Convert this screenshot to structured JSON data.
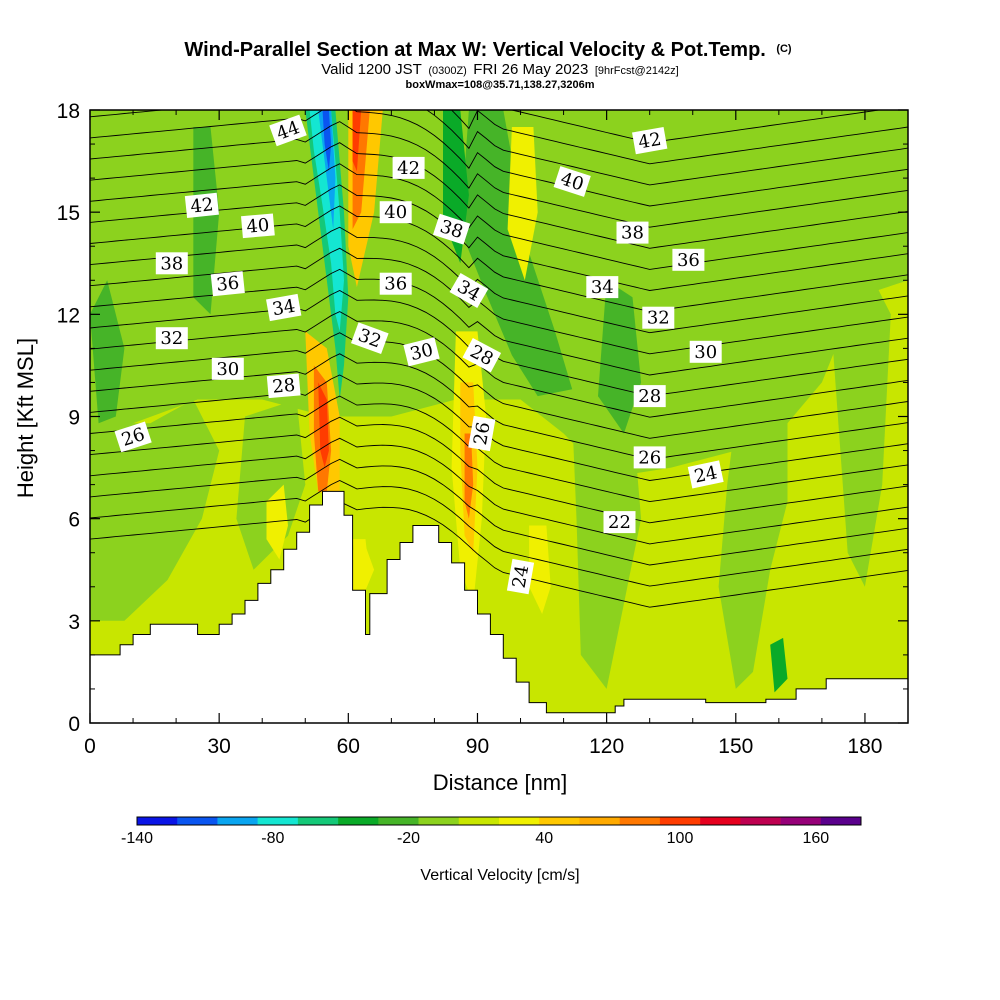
{
  "header": {
    "title": "Wind-Parallel Section at Max W: Vertical Velocity & Pot.Temp.",
    "title_tag": "(C)",
    "subtitle_a": "Valid 1200 JST",
    "subtitle_b": "(0300Z)",
    "subtitle_c": "FRI 26 May 2023",
    "subtitle_d": "[9hrFcst@2142z]",
    "subtitle2": "boxWmax=108@35.71,138.27,3206m"
  },
  "chart_data": {
    "type": "heatmap",
    "xlabel": "Distance [nm]",
    "ylabel": "Height [Kft MSL]",
    "xlim": [
      0,
      190
    ],
    "ylim": [
      0,
      18
    ],
    "x_ticks": [
      "0",
      "30",
      "60",
      "90",
      "120",
      "150",
      "180"
    ],
    "y_ticks": [
      "0",
      "3",
      "6",
      "9",
      "12",
      "15",
      "18"
    ],
    "colorbar": {
      "label": "Vertical Velocity [cm/s]",
      "range": [
        -140,
        180
      ],
      "tick_labels": [
        "-140",
        "-80",
        "-20",
        "40",
        "100",
        "160"
      ],
      "tick_values": [
        -140,
        -80,
        -20,
        40,
        100,
        160
      ],
      "colors": [
        "#0a14e6",
        "#0a55f0",
        "#0aa5f0",
        "#14e6d2",
        "#14c878",
        "#0aaa28",
        "#46b428",
        "#8cd21e",
        "#c8e600",
        "#f0f000",
        "#ffc800",
        "#ffaa00",
        "#ff7800",
        "#ff3c00",
        "#e6001e",
        "#be0050",
        "#960078",
        "#5a008c"
      ]
    },
    "terrain": [
      [
        0,
        2
      ],
      [
        7,
        2
      ],
      [
        7,
        2.3
      ],
      [
        10,
        2.3
      ],
      [
        10,
        2.6
      ],
      [
        14,
        2.6
      ],
      [
        14,
        2.9
      ],
      [
        25,
        2.9
      ],
      [
        25,
        2.6
      ],
      [
        30,
        2.6
      ],
      [
        30,
        2.9
      ],
      [
        33,
        2.9
      ],
      [
        33,
        3.2
      ],
      [
        36,
        3.2
      ],
      [
        36,
        3.6
      ],
      [
        39,
        3.6
      ],
      [
        39,
        4.1
      ],
      [
        42,
        4.1
      ],
      [
        42,
        4.5
      ],
      [
        45,
        4.5
      ],
      [
        45,
        5.1
      ],
      [
        48,
        5.1
      ],
      [
        48,
        5.6
      ],
      [
        51,
        5.6
      ],
      [
        51,
        6.4
      ],
      [
        54,
        6.4
      ],
      [
        54,
        6.8
      ],
      [
        59,
        6.8
      ],
      [
        59,
        6.1
      ],
      [
        61,
        6.1
      ],
      [
        61,
        3.9
      ],
      [
        64,
        3.9
      ],
      [
        64,
        2.6
      ],
      [
        65,
        2.6
      ],
      [
        65,
        3.8
      ],
      [
        69,
        3.8
      ],
      [
        69,
        4.8
      ],
      [
        72,
        4.8
      ],
      [
        72,
        5.3
      ],
      [
        75,
        5.3
      ],
      [
        75,
        5.8
      ],
      [
        81,
        5.8
      ],
      [
        81,
        5.3
      ],
      [
        84,
        5.3
      ],
      [
        84,
        4.7
      ],
      [
        87,
        4.7
      ],
      [
        87,
        3.9
      ],
      [
        90,
        3.9
      ],
      [
        90,
        3.2
      ],
      [
        93,
        3.2
      ],
      [
        93,
        2.6
      ],
      [
        96,
        2.6
      ],
      [
        96,
        1.9
      ],
      [
        99,
        1.9
      ],
      [
        99,
        1.2
      ],
      [
        102,
        1.2
      ],
      [
        102,
        0.6
      ],
      [
        106,
        0.6
      ],
      [
        106,
        0.3
      ],
      [
        122,
        0.3
      ],
      [
        122,
        0.5
      ],
      [
        124,
        0.5
      ],
      [
        124,
        0.7
      ],
      [
        143,
        0.7
      ],
      [
        143,
        0.6
      ],
      [
        157,
        0.6
      ],
      [
        157,
        0.7
      ],
      [
        164,
        0.7
      ],
      [
        164,
        1.0
      ],
      [
        171,
        1.0
      ],
      [
        171,
        1.3
      ],
      [
        190,
        1.3
      ]
    ],
    "contour_levels": [
      22,
      23,
      24,
      25,
      26,
      27,
      28,
      29,
      30,
      31,
      32,
      33,
      34,
      35,
      36,
      37,
      38,
      39,
      40,
      41,
      42,
      43,
      44
    ],
    "contour_labels": [
      {
        "text": "26",
        "x": 10,
        "y": 8.4,
        "angle": -18
      },
      {
        "text": "28",
        "x": 45,
        "y": 9.9,
        "angle": -5
      },
      {
        "text": "30",
        "x": 32,
        "y": 10.4,
        "angle": 0
      },
      {
        "text": "32",
        "x": 19,
        "y": 11.3,
        "angle": 0
      },
      {
        "text": "34",
        "x": 45,
        "y": 12.2,
        "angle": -10
      },
      {
        "text": "36",
        "x": 32,
        "y": 12.9,
        "angle": -6
      },
      {
        "text": "38",
        "x": 19,
        "y": 13.5,
        "angle": 0
      },
      {
        "text": "40",
        "x": 39,
        "y": 14.6,
        "angle": -5
      },
      {
        "text": "42",
        "x": 26,
        "y": 15.2,
        "angle": -6
      },
      {
        "text": "44",
        "x": 46,
        "y": 17.4,
        "angle": -20
      },
      {
        "text": "42",
        "x": 74,
        "y": 16.3,
        "angle": 0
      },
      {
        "text": "40",
        "x": 71,
        "y": 15.0,
        "angle": 0
      },
      {
        "text": "38",
        "x": 84,
        "y": 14.5,
        "angle": 18
      },
      {
        "text": "36",
        "x": 71,
        "y": 12.9,
        "angle": 0
      },
      {
        "text": "34",
        "x": 88,
        "y": 12.7,
        "angle": 30
      },
      {
        "text": "32",
        "x": 65,
        "y": 11.3,
        "angle": 20
      },
      {
        "text": "30",
        "x": 77,
        "y": 10.9,
        "angle": -14
      },
      {
        "text": "28",
        "x": 91,
        "y": 10.8,
        "angle": 28
      },
      {
        "text": "26",
        "x": 91,
        "y": 8.5,
        "angle": -80
      },
      {
        "text": "24",
        "x": 100,
        "y": 4.3,
        "angle": -80
      },
      {
        "text": "22",
        "x": 123,
        "y": 5.9,
        "angle": 0
      },
      {
        "text": "24",
        "x": 143,
        "y": 7.3,
        "angle": -12
      },
      {
        "text": "26",
        "x": 130,
        "y": 7.8,
        "angle": 0
      },
      {
        "text": "28",
        "x": 130,
        "y": 9.6,
        "angle": 0
      },
      {
        "text": "30",
        "x": 143,
        "y": 10.9,
        "angle": 0
      },
      {
        "text": "32",
        "x": 132,
        "y": 11.9,
        "angle": 0
      },
      {
        "text": "34",
        "x": 119,
        "y": 12.8,
        "angle": 0
      },
      {
        "text": "36",
        "x": 139,
        "y": 13.6,
        "angle": 0
      },
      {
        "text": "38",
        "x": 126,
        "y": 14.4,
        "angle": 0
      },
      {
        "text": "40",
        "x": 112,
        "y": 15.9,
        "angle": 18
      },
      {
        "text": "42",
        "x": 130,
        "y": 17.1,
        "angle": -10
      }
    ]
  }
}
